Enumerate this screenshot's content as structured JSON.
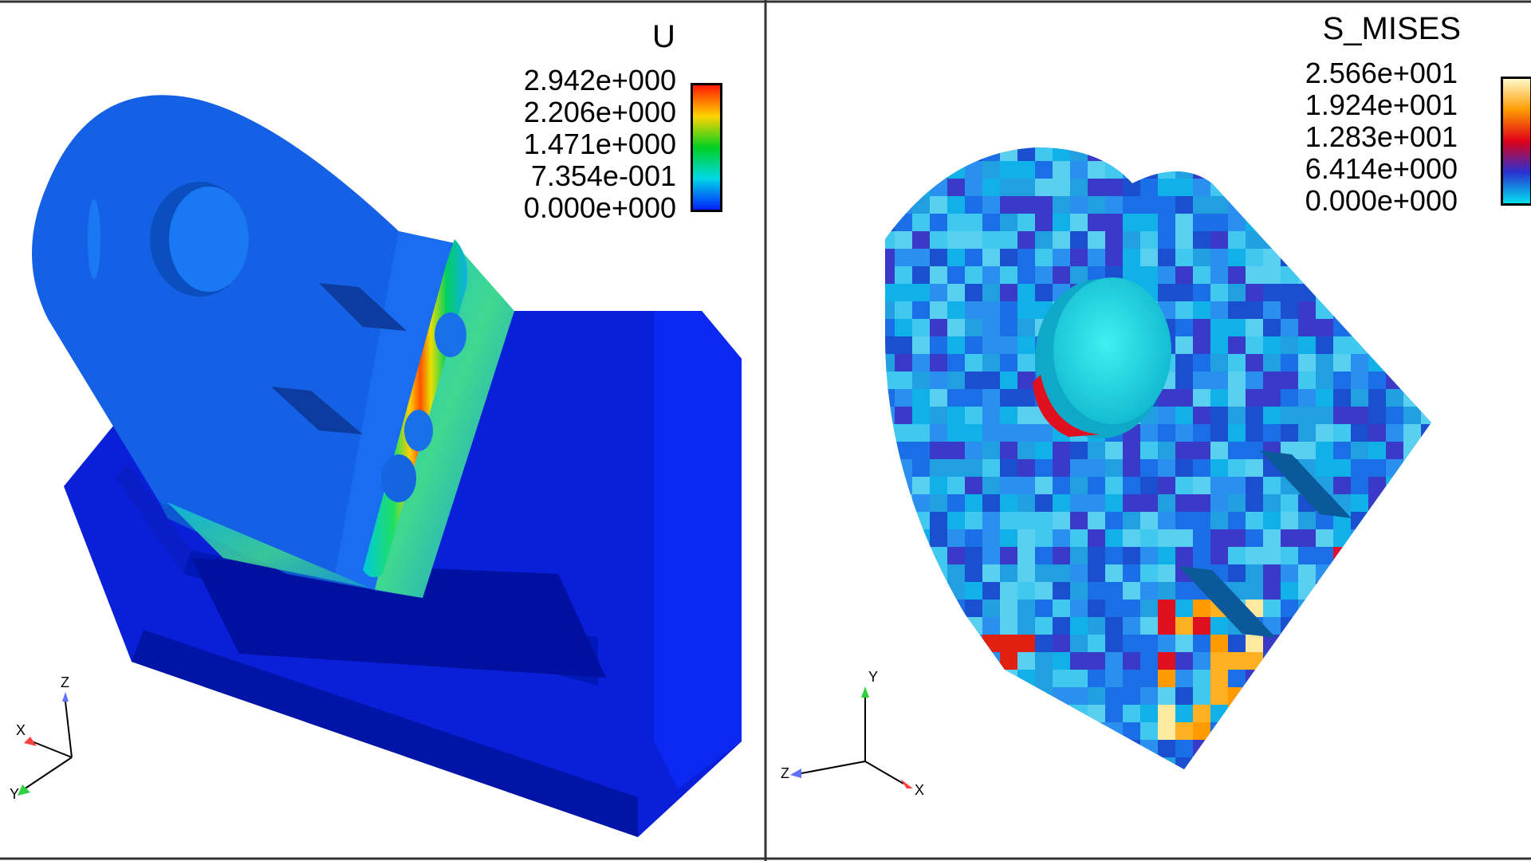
{
  "left_view": {
    "legend": {
      "title": "U",
      "labels": [
        "2.942e+000",
        "2.206e+000",
        "1.471e+000",
        "7.354e-001",
        "0.000e+000"
      ],
      "colors": [
        "#ff1a00",
        "#ffd400",
        "#00d020",
        "#00d8e8",
        "#0020ff"
      ]
    },
    "triad": {
      "axes": [
        "Z",
        "X",
        "Y"
      ]
    }
  },
  "right_view": {
    "legend": {
      "title": "S_MISES",
      "labels": [
        "2.566e+001",
        "1.924e+001",
        "1.283e+001",
        "6.414e+000",
        "0.000e+000"
      ],
      "colors": [
        "#fff8c8",
        "#ff9a00",
        "#e00018",
        "#2a30d0",
        "#00e0f0"
      ]
    },
    "triad": {
      "axes": [
        "Y",
        "Z",
        "X"
      ]
    }
  }
}
